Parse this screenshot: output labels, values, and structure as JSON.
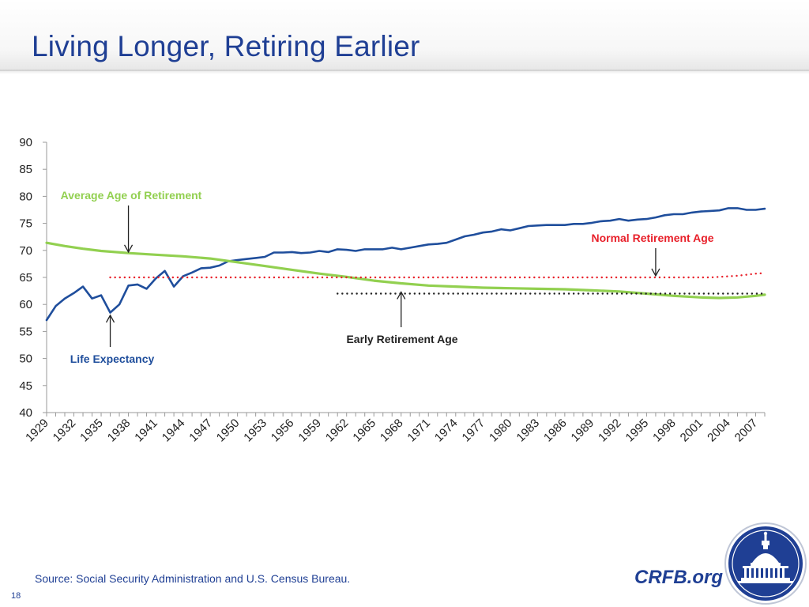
{
  "title": "Living Longer, Retiring Earlier",
  "source": "Source: Social Security Administration and U.S. Census Bureau.",
  "slide_number": "18",
  "brand": "CRFB.org",
  "colors": {
    "life_expectancy": "#1f4e9c",
    "average_retirement": "#92d050",
    "normal_retirement": "#e8202a",
    "early_retirement": "#222222",
    "title": "#1f3f94"
  },
  "icons": {
    "seal": "capitol-seal-icon"
  },
  "chart_data": {
    "type": "line",
    "title": "",
    "xlabel": "",
    "ylabel": "",
    "ylim": [
      40,
      90
    ],
    "yticks": [
      40,
      45,
      50,
      55,
      60,
      65,
      70,
      75,
      80,
      85,
      90
    ],
    "xlim": [
      1929,
      2008
    ],
    "xticks": [
      1929,
      1932,
      1935,
      1938,
      1941,
      1944,
      1947,
      1950,
      1953,
      1956,
      1959,
      1962,
      1965,
      1968,
      1971,
      1974,
      1977,
      1980,
      1983,
      1986,
      1989,
      1992,
      1995,
      1998,
      2001,
      2004,
      2007
    ],
    "grid": false,
    "legend": "none",
    "series": [
      {
        "name": "Life Expectancy",
        "style": "solid",
        "points": [
          [
            1929,
            57.1
          ],
          [
            1930,
            59.7
          ],
          [
            1931,
            61.1
          ],
          [
            1932,
            62.1
          ],
          [
            1933,
            63.3
          ],
          [
            1934,
            61.1
          ],
          [
            1935,
            61.7
          ],
          [
            1936,
            58.5
          ],
          [
            1937,
            60.0
          ],
          [
            1938,
            63.5
          ],
          [
            1939,
            63.7
          ],
          [
            1940,
            62.9
          ],
          [
            1941,
            64.8
          ],
          [
            1942,
            66.2
          ],
          [
            1943,
            63.3
          ],
          [
            1944,
            65.2
          ],
          [
            1945,
            65.9
          ],
          [
            1946,
            66.7
          ],
          [
            1947,
            66.8
          ],
          [
            1948,
            67.2
          ],
          [
            1949,
            68.0
          ],
          [
            1950,
            68.2
          ],
          [
            1951,
            68.4
          ],
          [
            1952,
            68.6
          ],
          [
            1953,
            68.8
          ],
          [
            1954,
            69.6
          ],
          [
            1955,
            69.6
          ],
          [
            1956,
            69.7
          ],
          [
            1957,
            69.5
          ],
          [
            1958,
            69.6
          ],
          [
            1959,
            69.9
          ],
          [
            1960,
            69.7
          ],
          [
            1961,
            70.2
          ],
          [
            1962,
            70.1
          ],
          [
            1963,
            69.9
          ],
          [
            1964,
            70.2
          ],
          [
            1965,
            70.2
          ],
          [
            1966,
            70.2
          ],
          [
            1967,
            70.5
          ],
          [
            1968,
            70.2
          ],
          [
            1969,
            70.5
          ],
          [
            1970,
            70.8
          ],
          [
            1971,
            71.1
          ],
          [
            1972,
            71.2
          ],
          [
            1973,
            71.4
          ],
          [
            1974,
            72.0
          ],
          [
            1975,
            72.6
          ],
          [
            1976,
            72.9
          ],
          [
            1977,
            73.3
          ],
          [
            1978,
            73.5
          ],
          [
            1979,
            73.9
          ],
          [
            1980,
            73.7
          ],
          [
            1981,
            74.1
          ],
          [
            1982,
            74.5
          ],
          [
            1983,
            74.6
          ],
          [
            1984,
            74.7
          ],
          [
            1985,
            74.7
          ],
          [
            1986,
            74.7
          ],
          [
            1987,
            74.9
          ],
          [
            1988,
            74.9
          ],
          [
            1989,
            75.1
          ],
          [
            1990,
            75.4
          ],
          [
            1991,
            75.5
          ],
          [
            1992,
            75.8
          ],
          [
            1993,
            75.5
          ],
          [
            1994,
            75.7
          ],
          [
            1995,
            75.8
          ],
          [
            1996,
            76.1
          ],
          [
            1997,
            76.5
          ],
          [
            1998,
            76.7
          ],
          [
            1999,
            76.7
          ],
          [
            2000,
            77.0
          ],
          [
            2001,
            77.2
          ],
          [
            2002,
            77.3
          ],
          [
            2003,
            77.4
          ],
          [
            2004,
            77.8
          ],
          [
            2005,
            77.8
          ],
          [
            2006,
            77.5
          ],
          [
            2007,
            77.5
          ],
          [
            2008,
            77.7
          ]
        ]
      },
      {
        "name": "Average Age of Retirement",
        "style": "solid",
        "points": [
          [
            1929,
            71.4
          ],
          [
            1931,
            70.8
          ],
          [
            1933,
            70.3
          ],
          [
            1935,
            69.9
          ],
          [
            1938,
            69.5
          ],
          [
            1941,
            69.2
          ],
          [
            1944,
            68.9
          ],
          [
            1947,
            68.5
          ],
          [
            1950,
            67.8
          ],
          [
            1953,
            67.1
          ],
          [
            1956,
            66.4
          ],
          [
            1959,
            65.7
          ],
          [
            1962,
            65.1
          ],
          [
            1965,
            64.4
          ],
          [
            1968,
            63.9
          ],
          [
            1971,
            63.5
          ],
          [
            1974,
            63.3
          ],
          [
            1977,
            63.1
          ],
          [
            1980,
            63.0
          ],
          [
            1983,
            62.9
          ],
          [
            1986,
            62.8
          ],
          [
            1989,
            62.6
          ],
          [
            1992,
            62.4
          ],
          [
            1995,
            62.0
          ],
          [
            1998,
            61.6
          ],
          [
            2001,
            61.3
          ],
          [
            2003,
            61.2
          ],
          [
            2005,
            61.3
          ],
          [
            2007,
            61.6
          ],
          [
            2008,
            61.8
          ]
        ]
      },
      {
        "name": "Normal Retirement Age",
        "style": "dotted",
        "points": [
          [
            1936,
            65.0
          ],
          [
            2002,
            65.0
          ],
          [
            2003,
            65.1
          ],
          [
            2004,
            65.2
          ],
          [
            2005,
            65.3
          ],
          [
            2006,
            65.5
          ],
          [
            2007,
            65.7
          ],
          [
            2008,
            65.8
          ]
        ]
      },
      {
        "name": "Early Retirement Age",
        "style": "dotted",
        "points": [
          [
            1961,
            62.0
          ],
          [
            2008,
            62.0
          ]
        ]
      }
    ],
    "annotations": [
      {
        "label": "Average Age of Retirement",
        "series": 1,
        "target": [
          1938,
          69.7
        ],
        "label_side": "above"
      },
      {
        "label": "Normal Retirement Age",
        "series": 2,
        "target": [
          1996,
          65.3
        ],
        "label_side": "above"
      },
      {
        "label": "Early Retirement Age",
        "series": 3,
        "target": [
          1968,
          62.3
        ],
        "label_side": "below"
      },
      {
        "label": "Life Expectancy",
        "series": 0,
        "target": [
          1936,
          58.0
        ],
        "label_side": "below"
      }
    ]
  }
}
